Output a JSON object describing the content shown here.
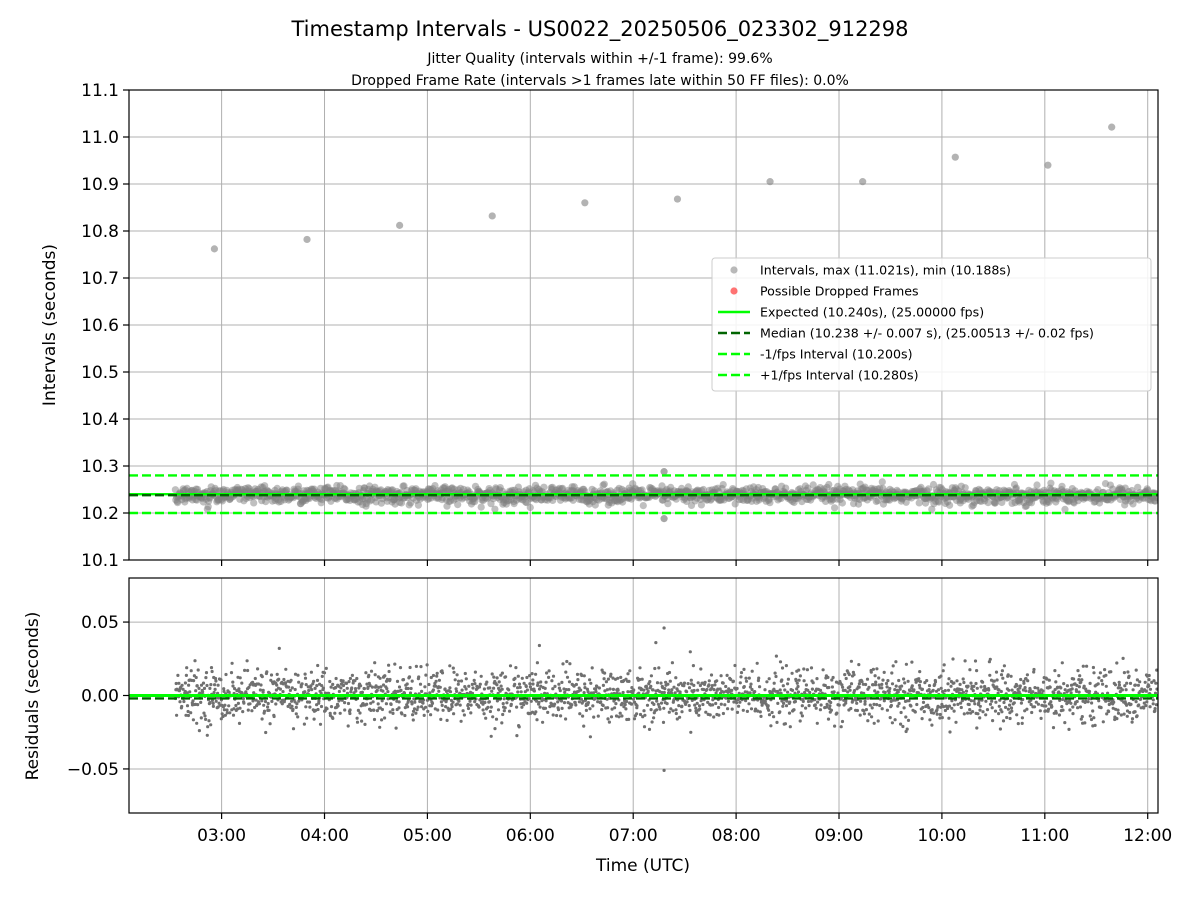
{
  "title": "Timestamp Intervals - US0022_20250506_023302_912298",
  "subtitle_1": "Jitter Quality (intervals within +/-1 frame): 99.6%",
  "subtitle_2": "Dropped Frame Rate (intervals >1 frames late within 50 FF files): 0.0%",
  "colors": {
    "points": "#808080",
    "dropped": "#ff0000",
    "expected": "#00ff00",
    "median": "#006400",
    "grid": "#b0b0b0"
  },
  "chart_data": [
    {
      "type": "scatter",
      "panel": "intervals",
      "ylabel": "Intervals (seconds)",
      "xlabel": "",
      "xlim": [
        2.1,
        12.1
      ],
      "ylim": [
        10.1,
        11.1
      ],
      "yticks": [
        10.1,
        10.2,
        10.3,
        10.4,
        10.5,
        10.6,
        10.7,
        10.8,
        10.9,
        11.0,
        11.1
      ],
      "ytick_labels": [
        "10.1",
        "10.2",
        "10.3",
        "10.4",
        "10.5",
        "10.6",
        "10.7",
        "10.8",
        "10.9",
        "11.0",
        "11.1"
      ],
      "grid": true,
      "legend_position": "center-right",
      "legend": [
        {
          "label": "Intervals, max (11.021s), min (10.188s)",
          "kind": "marker",
          "color": "#808080"
        },
        {
          "label": "Possible Dropped Frames",
          "kind": "marker",
          "color": "#ff0000"
        },
        {
          "label": "Expected (10.240s), (25.00000 fps)",
          "kind": "solid",
          "color": "#00ff00"
        },
        {
          "label": "Median (10.238 +/- 0.007 s), (25.00513 +/- 0.02 fps)",
          "kind": "dashed",
          "color": "#006400"
        },
        {
          "label": "-1/fps Interval (10.200s)",
          "kind": "dashed",
          "color": "#00ff00"
        },
        {
          "label": "+1/fps Interval (10.280s)",
          "kind": "dashed",
          "color": "#00ff00"
        }
      ],
      "reference_lines": {
        "expected": 10.24,
        "median": 10.238,
        "minus_one_frame": 10.2,
        "plus_one_frame": 10.28
      },
      "outliers": [
        {
          "x": 2.93,
          "y": 10.762
        },
        {
          "x": 3.83,
          "y": 10.782
        },
        {
          "x": 4.73,
          "y": 10.812
        },
        {
          "x": 5.63,
          "y": 10.832
        },
        {
          "x": 6.53,
          "y": 10.86
        },
        {
          "x": 7.43,
          "y": 10.868
        },
        {
          "x": 8.33,
          "y": 10.905
        },
        {
          "x": 9.23,
          "y": 10.905
        },
        {
          "x": 10.13,
          "y": 10.957
        },
        {
          "x": 11.03,
          "y": 10.94
        },
        {
          "x": 11.65,
          "y": 11.021
        }
      ],
      "extremes": [
        {
          "x": 7.3,
          "y": 10.288
        },
        {
          "x": 7.3,
          "y": 10.188
        }
      ],
      "band": {
        "x_start": 2.55,
        "x_end": 12.1,
        "center": 10.238,
        "spread": 0.012,
        "count": 1650
      }
    },
    {
      "type": "scatter",
      "panel": "residuals",
      "ylabel": "Residuals (seconds)",
      "xlabel": "Time (UTC)",
      "xlim": [
        2.1,
        12.1
      ],
      "ylim": [
        -0.08,
        0.08
      ],
      "yticks": [
        0.05,
        0.0,
        -0.05
      ],
      "ytick_labels": [
        "0.05",
        "0.00",
        "−0.05"
      ],
      "xticks": [
        3,
        4,
        5,
        6,
        7,
        8,
        9,
        10,
        11,
        12
      ],
      "xtick_labels": [
        "03:00",
        "04:00",
        "05:00",
        "06:00",
        "07:00",
        "08:00",
        "09:00",
        "10:00",
        "11:00",
        "12:00"
      ],
      "grid": true,
      "reference_lines": {
        "expected": 0.0,
        "median": -0.002
      },
      "extremes": [
        {
          "x": 7.3,
          "y": 0.046
        },
        {
          "x": 7.3,
          "y": -0.051
        },
        {
          "x": 7.22,
          "y": 0.036
        }
      ],
      "band": {
        "x_start": 2.55,
        "x_end": 12.1,
        "center": 0.0,
        "spread": 0.009,
        "count": 2400
      }
    }
  ]
}
